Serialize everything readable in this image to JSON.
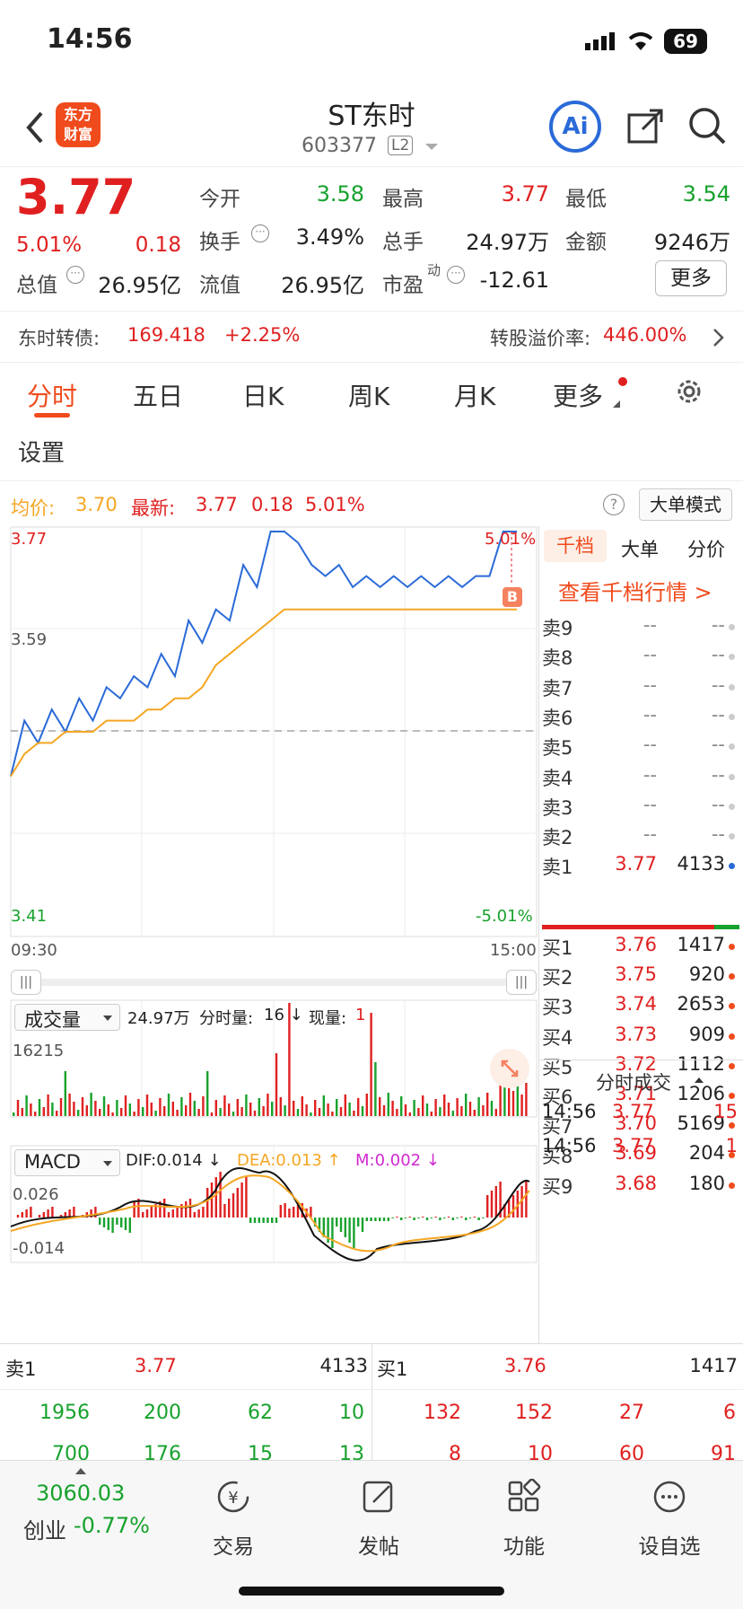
{
  "status": {
    "time": "14:56",
    "battery": "69"
  },
  "header": {
    "title": "ST东时",
    "code": "603377",
    "level": "L2",
    "logo_top": "东方",
    "logo_bottom": "财富",
    "ai_label": "Ai"
  },
  "quote": {
    "price": "3.77",
    "pct": "5.01%",
    "chg": "0.18",
    "open_label": "今开",
    "open": "3.58",
    "high_label": "最高",
    "high": "3.77",
    "low_label": "最低",
    "low": "3.54",
    "turnover_label": "换手",
    "turnover": "3.49%",
    "volume_label": "总手",
    "volume": "24.97万",
    "amount_label": "金额",
    "amount": "9246万",
    "mcap_label": "总值",
    "mcap": "26.95亿",
    "float_label": "流值",
    "float": "26.95亿",
    "pe_label": "市盈",
    "pe_sup": "动",
    "pe": "-12.61",
    "more_label": "更多"
  },
  "convert": {
    "label": "东时转债:",
    "price": "169.418",
    "pct": "+2.25%",
    "premium_label": "转股溢价率:",
    "premium": "446.00%"
  },
  "tabs": {
    "items": [
      "分时",
      "五日",
      "日K",
      "周K",
      "月K",
      "更多"
    ],
    "active": 0,
    "settings": "设置"
  },
  "avgbar": {
    "avg_label": "均价:",
    "avg": "3.70",
    "latest_label": "最新:",
    "latest": "3.77",
    "chg": "0.18",
    "pct": "5.01%",
    "mode": "大单模式"
  },
  "chart": {
    "y_high": "3.77",
    "y_mid": "3.59",
    "y_low": "3.41",
    "pct_high": "5.01%",
    "pct_low": "-5.01%",
    "time_start": "09:30",
    "time_end": "15:00",
    "marker": "B",
    "volume_selector": "成交量",
    "volume_info": "24.97万",
    "volume_fen_label": "分时量:",
    "volume_fen": "16 ↓",
    "volume_now_label": "现量:",
    "volume_now": "1",
    "vol_max": "16215",
    "macd_selector": "MACD",
    "dif": "DIF:0.014 ↓",
    "dea": "DEA:0.013 ↑",
    "m": "M:0.002 ↓",
    "macd_top": "0.026",
    "macd_bottom": "-0.014"
  },
  "chart_data": {
    "type": "line",
    "series": [
      {
        "values": [
          3.55,
          3.6,
          3.58,
          3.61,
          3.59,
          3.62,
          3.6,
          3.63,
          3.62,
          3.64,
          3.63,
          3.66,
          3.64,
          3.69,
          3.67,
          3.7,
          3.69,
          3.74,
          3.72,
          3.77,
          3.77,
          3.76,
          3.74,
          3.73,
          3.74,
          3.72,
          3.73,
          3.72,
          3.73,
          3.72,
          3.73,
          3.72,
          3.73,
          3.72,
          3.73,
          3.73,
          3.77,
          3.77
        ]
      },
      {
        "values": [
          3.55,
          3.57,
          3.58,
          3.58,
          3.59,
          3.59,
          3.59,
          3.6,
          3.6,
          3.6,
          3.61,
          3.61,
          3.62,
          3.62,
          3.63,
          3.65,
          3.66,
          3.67,
          3.68,
          3.69,
          3.7,
          3.7,
          3.7,
          3.7,
          3.7,
          3.7,
          3.7,
          3.7,
          3.7,
          3.7,
          3.7,
          3.7,
          3.7,
          3.7,
          3.7,
          3.7,
          3.7,
          3.7
        ]
      }
    ],
    "ylim": [
      3.41,
      3.77
    ]
  },
  "book": {
    "tabs": [
      "千档",
      "大单",
      "分价"
    ],
    "link": "查看千档行情 >",
    "asks": [
      {
        "label": "卖9",
        "price": "--",
        "vol": "--"
      },
      {
        "label": "卖8",
        "price": "--",
        "vol": "--"
      },
      {
        "label": "卖7",
        "price": "--",
        "vol": "--"
      },
      {
        "label": "卖6",
        "price": "--",
        "vol": "--"
      },
      {
        "label": "卖5",
        "price": "--",
        "vol": "--"
      },
      {
        "label": "卖4",
        "price": "--",
        "vol": "--"
      },
      {
        "label": "卖3",
        "price": "--",
        "vol": "--"
      },
      {
        "label": "卖2",
        "price": "--",
        "vol": "--"
      },
      {
        "label": "卖1",
        "price": "3.77",
        "vol": "4133"
      }
    ],
    "bids": [
      {
        "label": "买1",
        "price": "3.76",
        "vol": "1417"
      },
      {
        "label": "买2",
        "price": "3.75",
        "vol": "920"
      },
      {
        "label": "买3",
        "price": "3.74",
        "vol": "2653"
      },
      {
        "label": "买4",
        "price": "3.73",
        "vol": "909"
      },
      {
        "label": "买5",
        "price": "3.72",
        "vol": "1112"
      },
      {
        "label": "买6",
        "price": "3.71",
        "vol": "1206"
      },
      {
        "label": "买7",
        "price": "3.70",
        "vol": "5169"
      },
      {
        "label": "买8",
        "price": "3.69",
        "vol": "204"
      },
      {
        "label": "买9",
        "price": "3.68",
        "vol": "180"
      }
    ],
    "trades_title": "分时成交",
    "trades": [
      {
        "time": "14:56",
        "price": "3.77",
        "vol": "15"
      },
      {
        "time": "14:56",
        "price": "3.77",
        "vol": "1"
      }
    ]
  },
  "bottom": {
    "sell_label": "卖1",
    "sell_price": "3.77",
    "sell_vol": "4133",
    "buy_label": "买1",
    "buy_price": "3.76",
    "buy_vol": "1417",
    "sell_row1": [
      "1956",
      "200",
      "62",
      "10"
    ],
    "sell_row2": [
      "700",
      "176",
      "15",
      "13"
    ],
    "buy_row1": [
      "132",
      "152",
      "27",
      "6"
    ],
    "buy_row2": [
      "8",
      "10",
      "60",
      "91"
    ]
  },
  "tabbar": {
    "index_value": "3060.03",
    "index_name": "创业",
    "index_pct": "-0.77%",
    "items": [
      "交易",
      "发帖",
      "功能",
      "设自选"
    ]
  }
}
